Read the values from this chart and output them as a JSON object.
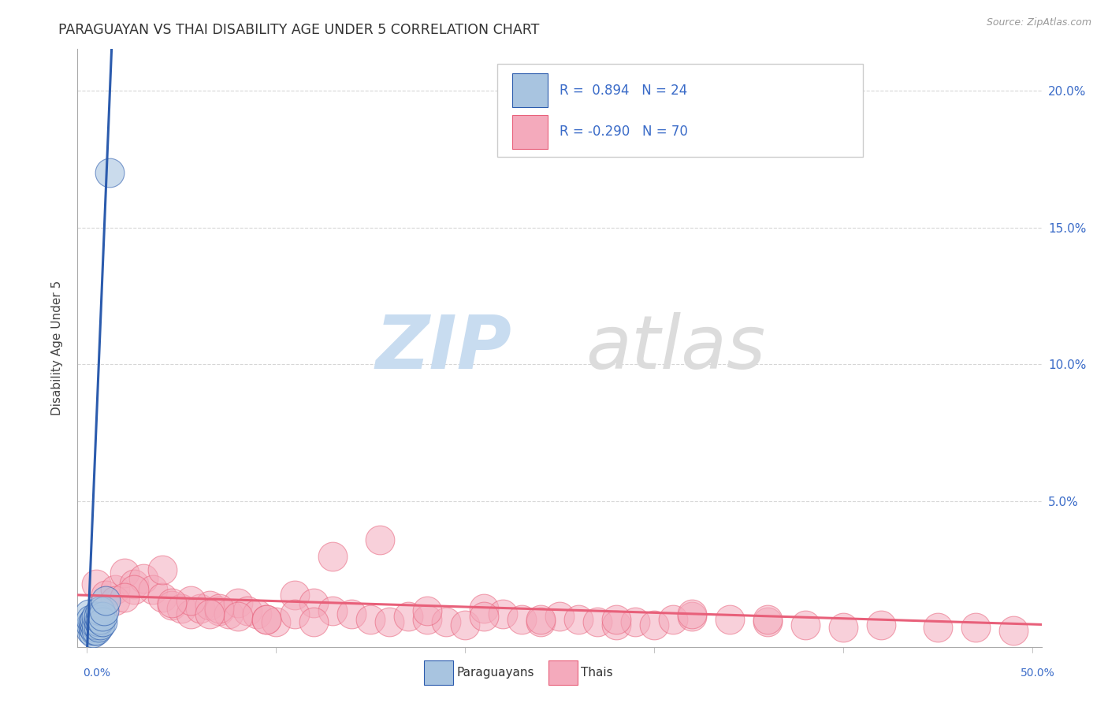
{
  "title": "PARAGUAYAN VS THAI DISABILITY AGE UNDER 5 CORRELATION CHART",
  "source": "Source: ZipAtlas.com",
  "ylabel": "Disability Age Under 5",
  "xlim": [
    -0.005,
    0.505
  ],
  "ylim": [
    -0.003,
    0.215
  ],
  "yticks": [
    0.05,
    0.1,
    0.15,
    0.2
  ],
  "ytick_labels": [
    "5.0%",
    "10.0%",
    "15.0%",
    "20.0%"
  ],
  "xticks": [
    0.0,
    0.1,
    0.2,
    0.3,
    0.4,
    0.5
  ],
  "blue_R": "0.894",
  "blue_N": "24",
  "pink_R": "-0.290",
  "pink_N": "70",
  "blue_scatter_color": "#A8C4E0",
  "pink_scatter_color": "#F4AABC",
  "blue_line_color": "#2B5BAD",
  "pink_line_color": "#E8607A",
  "legend_blue_label": "Paraguayans",
  "legend_pink_label": "Thais",
  "text_color": "#3A6BC8",
  "watermark_zip_color": "#C8DCF0",
  "watermark_atlas_color": "#DCDCDC",
  "blue_scatter_x": [
    0.001,
    0.002,
    0.002,
    0.002,
    0.003,
    0.003,
    0.003,
    0.004,
    0.004,
    0.004,
    0.005,
    0.005,
    0.005,
    0.006,
    0.006,
    0.006,
    0.007,
    0.007,
    0.007,
    0.008,
    0.008,
    0.009,
    0.01,
    0.012
  ],
  "blue_scatter_y": [
    0.009,
    0.003,
    0.005,
    0.007,
    0.002,
    0.004,
    0.006,
    0.003,
    0.005,
    0.007,
    0.003,
    0.005,
    0.008,
    0.004,
    0.006,
    0.008,
    0.005,
    0.007,
    0.01,
    0.006,
    0.008,
    0.01,
    0.014,
    0.17
  ],
  "blue_trend_x": [
    0.0,
    0.013
  ],
  "blue_trend_y": [
    -0.005,
    0.215
  ],
  "pink_scatter_x": [
    0.005,
    0.01,
    0.015,
    0.02,
    0.025,
    0.03,
    0.035,
    0.04,
    0.045,
    0.05,
    0.055,
    0.06,
    0.065,
    0.07,
    0.075,
    0.08,
    0.085,
    0.09,
    0.095,
    0.1,
    0.11,
    0.12,
    0.13,
    0.14,
    0.15,
    0.16,
    0.17,
    0.18,
    0.19,
    0.2,
    0.21,
    0.22,
    0.23,
    0.24,
    0.25,
    0.26,
    0.27,
    0.28,
    0.29,
    0.3,
    0.31,
    0.32,
    0.34,
    0.36,
    0.38,
    0.4,
    0.42,
    0.45,
    0.47,
    0.49,
    0.015,
    0.025,
    0.04,
    0.055,
    0.07,
    0.08,
    0.095,
    0.11,
    0.13,
    0.155,
    0.18,
    0.21,
    0.24,
    0.28,
    0.32,
    0.36,
    0.02,
    0.045,
    0.065,
    0.12
  ],
  "pink_scatter_y": [
    0.02,
    0.016,
    0.018,
    0.024,
    0.02,
    0.022,
    0.018,
    0.015,
    0.012,
    0.011,
    0.009,
    0.011,
    0.012,
    0.01,
    0.009,
    0.013,
    0.01,
    0.009,
    0.007,
    0.006,
    0.016,
    0.013,
    0.01,
    0.009,
    0.007,
    0.006,
    0.008,
    0.007,
    0.006,
    0.005,
    0.011,
    0.009,
    0.007,
    0.006,
    0.008,
    0.007,
    0.006,
    0.005,
    0.006,
    0.005,
    0.007,
    0.008,
    0.007,
    0.006,
    0.005,
    0.004,
    0.005,
    0.004,
    0.004,
    0.003,
    0.014,
    0.018,
    0.025,
    0.014,
    0.011,
    0.008,
    0.007,
    0.009,
    0.03,
    0.036,
    0.01,
    0.008,
    0.007,
    0.007,
    0.009,
    0.007,
    0.015,
    0.013,
    0.009,
    0.006
  ],
  "pink_trend_x": [
    -0.01,
    0.51
  ],
  "pink_trend_y": [
    0.016,
    0.005
  ]
}
